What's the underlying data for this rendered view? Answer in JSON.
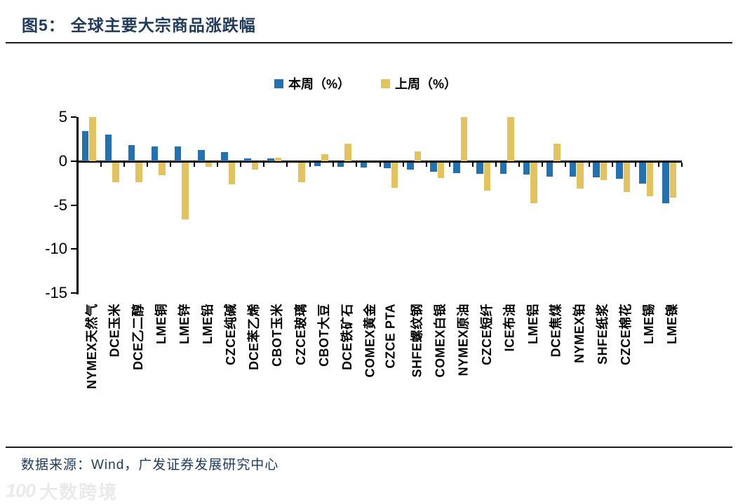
{
  "figure": {
    "label": "图5：",
    "title": "全球主要大宗商品涨跌幅"
  },
  "chart_data": {
    "type": "bar",
    "title": "全球主要大宗商品涨跌幅",
    "categories": [
      "NYMEX天然气",
      "DCE玉米",
      "DCE乙二醇",
      "LME铜",
      "LME锌",
      "LME铅",
      "CZCE纯碱",
      "DCE苯乙烯",
      "CBOT玉米",
      "CZCE玻璃",
      "CBOT大豆",
      "DCE铁矿石",
      "COMEX黄金",
      "CZCE PTA",
      "SHFE螺纹钢",
      "COMEX白银",
      "NYMEX原油",
      "CZCE短纤",
      "ICE布油",
      "LME铝",
      "DCE焦煤",
      "NYMEX铂",
      "SHFE纸浆",
      "CZCE棉花",
      "LME锡",
      "LME镍"
    ],
    "series": [
      {
        "name": "本周（%）",
        "color": "#2272b2",
        "values": [
          3.4,
          3.0,
          1.8,
          1.7,
          1.7,
          1.3,
          1.0,
          0.3,
          0.3,
          0.0,
          -0.4,
          -0.5,
          -0.6,
          -0.7,
          -0.8,
          -1.1,
          -1.2,
          -1.3,
          -1.3,
          -1.4,
          -1.6,
          -1.6,
          -1.7,
          -1.9,
          -2.4,
          -4.7
        ]
      },
      {
        "name": "上周（%）",
        "color": "#e2c35f",
        "values": [
          5.0,
          -2.3,
          -2.3,
          -1.5,
          -6.5,
          -0.5,
          -2.5,
          -0.8,
          0.4,
          -2.3,
          0.8,
          2.0,
          0.0,
          -2.9,
          1.1,
          -1.8,
          5.0,
          -3.2,
          5.0,
          -4.7,
          2.0,
          -3.0,
          -2.0,
          -3.4,
          -3.9,
          -4.0
        ]
      }
    ],
    "ylim": [
      -15,
      5
    ],
    "yticks": [
      5,
      0,
      -5,
      -10,
      -15
    ],
    "xlabel": "",
    "ylabel": "",
    "grid": false,
    "legend_position": "top-center",
    "x_tick_label_rotation": 90
  },
  "footer": {
    "source_text": "数据来源：Wind，广发证券发展研究中心"
  },
  "watermark": {
    "mark": "100",
    "label": "大数跨境"
  },
  "colors": {
    "this_week_blue": "#2272b2",
    "last_week_gold": "#e2c35f",
    "title_navy": "#1e3a5c",
    "rule_dark": "#1c1c24",
    "axis_black": "#000000",
    "watermark_gray": "#eaeaea"
  }
}
